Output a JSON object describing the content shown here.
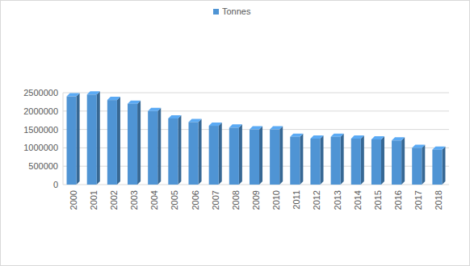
{
  "chart_data": {
    "type": "bar",
    "categories": [
      "2000",
      "2001",
      "2002",
      "2003",
      "2004",
      "2005",
      "2006",
      "2007",
      "2008",
      "2009",
      "2010",
      "2011",
      "2012",
      "2013",
      "2014",
      "2015",
      "2016",
      "2017",
      "2018"
    ],
    "series": [
      {
        "name": "Tonnes",
        "color": "#4f94d4",
        "values": [
          2400000,
          2450000,
          2300000,
          2200000,
          2000000,
          1800000,
          1700000,
          1600000,
          1550000,
          1500000,
          1500000,
          1300000,
          1250000,
          1300000,
          1250000,
          1230000,
          1200000,
          1000000,
          950000
        ]
      }
    ],
    "ylim": [
      0,
      2500000
    ],
    "yticks": [
      0,
      500000,
      1000000,
      1500000,
      2000000,
      2500000
    ],
    "grid": true,
    "legend": "top"
  }
}
